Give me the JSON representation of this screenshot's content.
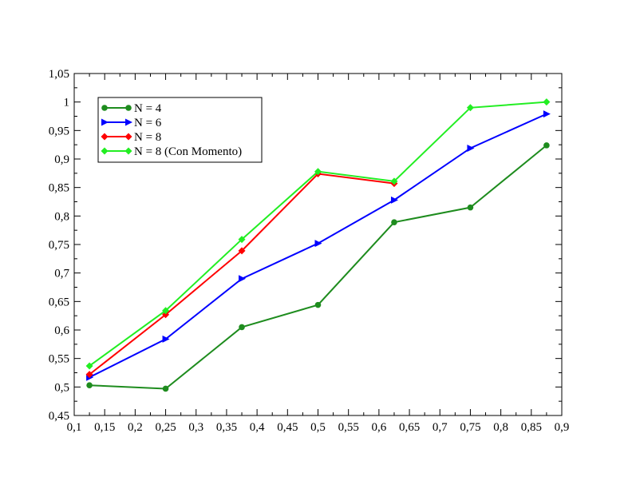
{
  "chart_data": {
    "type": "line",
    "title": "",
    "xlabel": "",
    "ylabel": "",
    "xlim": [
      0.1,
      0.9
    ],
    "ylim": [
      0.45,
      1.05
    ],
    "x_ticks": [
      0.1,
      0.15,
      0.2,
      0.25,
      0.3,
      0.35,
      0.4,
      0.45,
      0.5,
      0.55,
      0.6,
      0.65,
      0.7,
      0.75,
      0.8,
      0.85,
      0.9
    ],
    "x_tick_labels": [
      "0,1",
      "0,15",
      "0,2",
      "0,25",
      "0,3",
      "0,35",
      "0,4",
      "0,45",
      "0,5",
      "0,55",
      "0,6",
      "0,65",
      "0,7",
      "0,75",
      "0,8",
      "0,85",
      "0,9"
    ],
    "y_ticks": [
      0.45,
      0.5,
      0.55,
      0.6,
      0.65,
      0.7,
      0.75,
      0.8,
      0.85,
      0.9,
      0.95,
      1.0,
      1.05
    ],
    "y_tick_labels": [
      "0,45",
      "0,5",
      "0,55",
      "0,6",
      "0,65",
      "0,7",
      "0,75",
      "0,8",
      "0,85",
      "0,9",
      "0,95",
      "1",
      "1,05"
    ],
    "grid": false,
    "legend_position": "top-left",
    "x": [
      0.125,
      0.25,
      0.375,
      0.5,
      0.625,
      0.75,
      0.875
    ],
    "series": [
      {
        "name": "N = 4",
        "color": "#1e8c1e",
        "marker": "circle",
        "values": [
          0.503,
          0.497,
          0.605,
          0.644,
          0.789,
          0.815,
          0.924
        ]
      },
      {
        "name": "N = 6",
        "color": "#0000ff",
        "marker": "triangle-right",
        "values": [
          0.517,
          0.584,
          0.69,
          0.752,
          0.828,
          0.919,
          0.979
        ]
      },
      {
        "name": "N = 8",
        "color": "#ff0000",
        "marker": "diamond",
        "values": [
          0.522,
          0.627,
          0.739,
          0.874,
          0.857,
          null,
          null
        ]
      },
      {
        "name": "N = 8 (Con Momento)",
        "color": "#22ee22",
        "marker": "diamond",
        "values": [
          0.537,
          0.634,
          0.759,
          0.878,
          0.861,
          0.99,
          1.0
        ]
      }
    ]
  }
}
